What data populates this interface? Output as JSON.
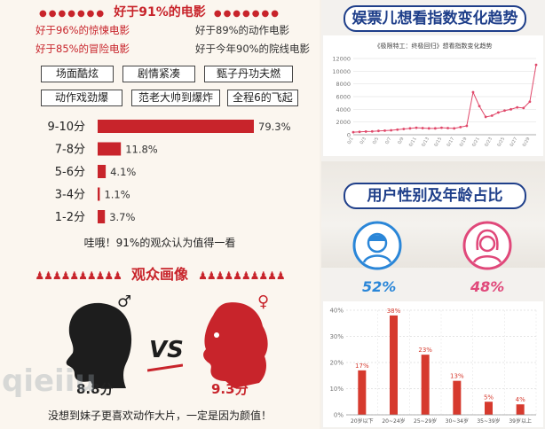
{
  "left": {
    "header_title": "好于91%的电影",
    "stats": [
      {
        "text": "好于96%的惊悚电影",
        "color": "#c8242b"
      },
      {
        "text": "好于89%的动作电影",
        "color": "#333333"
      },
      {
        "text": "好于85%的冒险电影",
        "color": "#c8242b"
      },
      {
        "text": "好于今年90%的院线电影",
        "color": "#333333"
      }
    ],
    "tags": [
      "场面酷炫",
      "剧情紧凑",
      "甄子丹功夫燃",
      "动作戏劲爆",
      "范老大帅到爆炸",
      "全程6的飞起"
    ],
    "summary": "哇哦！91%的观众认为值得一看",
    "audience_title": "观众画像",
    "male_symbol": "♂",
    "female_symbol": "♀",
    "vs_text": "VS",
    "male_score": "8.8分",
    "female_score": "9.3分",
    "footer": "没想到妹子更喜欢动作大片，一定是因为颜值！",
    "watermark": "qieiiu"
  },
  "right": {
    "trend_title": "娱票儿想看指数变化趋势",
    "gender_title": "用户性别及年龄占比",
    "male_pct": "52%",
    "female_pct": "48%"
  },
  "colors": {
    "red": "#c8242b",
    "blue": "#2a86d8",
    "pink": "#e0487a",
    "navy": "#1f3f8a",
    "line": "#e0486a"
  },
  "chart_data": [
    {
      "type": "bar",
      "orientation": "horizontal",
      "categories": [
        "9-10分",
        "7-8分",
        "5-6分",
        "3-4分",
        "1-2分"
      ],
      "values": [
        79.3,
        11.8,
        4.1,
        1.1,
        3.7
      ],
      "value_labels": [
        "79.3%",
        "11.8%",
        "4.1%",
        "1.1%",
        "3.7%"
      ],
      "xlim": [
        0,
        79.3
      ]
    },
    {
      "type": "line",
      "title": "《极限特工：终极回归》想看指数变化趋势",
      "x": [
        "0/1",
        "0/2",
        "0/3",
        "0/4",
        "0/5",
        "0/6",
        "0/7",
        "0/8",
        "0/9",
        "0/10",
        "0/11",
        "0/12",
        "0/13",
        "0/14",
        "0/15",
        "0/16",
        "0/17",
        "0/18",
        "0/19",
        "0/20",
        "0/21",
        "0/22",
        "0/23",
        "0/24",
        "0/25",
        "0/26",
        "0/27",
        "0/28",
        "0/29",
        "0/30"
      ],
      "x_tick_labels": [
        "0/1",
        "0/3",
        "0/5",
        "0/7",
        "0/9",
        "0/11",
        "0/13",
        "0/15",
        "0/17",
        "0/19",
        "0/21",
        "0/23",
        "0/25",
        "0/27",
        "0/29"
      ],
      "values": [
        400,
        450,
        500,
        520,
        600,
        650,
        700,
        800,
        900,
        1000,
        1100,
        1050,
        1000,
        1000,
        1100,
        1050,
        1000,
        1200,
        1400,
        6700,
        4500,
        2800,
        3000,
        3500,
        3800,
        4000,
        4300,
        4200,
        5200,
        11000
      ],
      "ylim": [
        0,
        12000
      ],
      "yticks": [
        0,
        2000,
        4000,
        6000,
        8000,
        10000,
        12000
      ],
      "grid": true
    },
    {
      "type": "bar",
      "categories": [
        "20岁以下",
        "20~24岁",
        "25~29岁",
        "30~34岁",
        "35~39岁",
        "39岁以上"
      ],
      "values": [
        17,
        38,
        23,
        13,
        5,
        4
      ],
      "value_labels": [
        "17%",
        "38%",
        "23%",
        "13%",
        "5%",
        "4%"
      ],
      "ylim": [
        0,
        40
      ],
      "yticks": [
        "0%",
        "10%",
        "20%",
        "30%",
        "40%"
      ],
      "grid": true
    }
  ]
}
